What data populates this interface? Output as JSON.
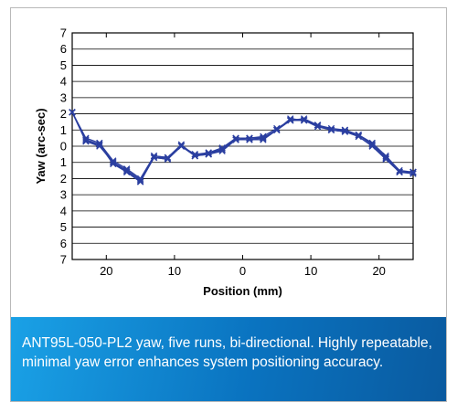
{
  "caption": "ANT95L-050-PL2 yaw, five runs, bi-directional. Highly repeatable, minimal yaw error enhances system positioning accuracy.",
  "chart_data": {
    "type": "line",
    "title": "",
    "xlabel": "Position (mm)",
    "ylabel": "Yaw (arc-sec)",
    "xlim": [
      -25,
      25
    ],
    "ylim": [
      -7,
      7
    ],
    "grid": "horizontal",
    "x_ticks": [
      -20,
      -10,
      0,
      10,
      20
    ],
    "x_tick_labels": [
      "20",
      "10",
      "0",
      "10",
      "20"
    ],
    "y_ticks": [
      7,
      6,
      5,
      4,
      3,
      2,
      1,
      0,
      -1,
      -2,
      -3,
      -4,
      -5,
      -6,
      -7
    ],
    "y_tick_labels": [
      "7",
      "6",
      "5",
      "4",
      "3",
      "2",
      "1",
      "0",
      "1",
      "2",
      "3",
      "4",
      "5",
      "6",
      "7"
    ],
    "color": "#2b3fa0",
    "marker": "x",
    "x": [
      -25,
      -23,
      -21,
      -19,
      -17,
      -15,
      -13,
      -11,
      -9,
      -7,
      -5,
      -3,
      -1,
      1,
      3,
      5,
      7,
      9,
      11,
      13,
      15,
      17,
      19,
      21,
      23,
      25
    ],
    "series": [
      {
        "values": [
          2.1,
          0.4,
          0.1,
          -1.0,
          -1.5,
          -2.1,
          -0.7,
          -0.8,
          0.0,
          -0.6,
          -0.5,
          -0.2,
          0.4,
          0.4,
          0.5,
          1.0,
          1.6,
          1.6,
          1.3,
          1.0,
          0.9,
          0.6,
          0.0,
          -0.8,
          -1.6,
          -1.6
        ]
      },
      {
        "values": [
          2.1,
          0.3,
          0.1,
          -1.1,
          -1.6,
          -2.2,
          -0.6,
          -0.7,
          0.0,
          -0.5,
          -0.4,
          -0.2,
          0.5,
          0.5,
          0.6,
          1.1,
          1.6,
          1.6,
          1.3,
          1.0,
          1.0,
          0.7,
          0.1,
          -0.7,
          -1.6,
          -1.6
        ]
      },
      {
        "values": [
          2.1,
          0.5,
          0.2,
          -0.9,
          -1.4,
          -2.0,
          -0.6,
          -0.7,
          0.1,
          -0.6,
          -0.4,
          -0.1,
          0.5,
          0.5,
          0.5,
          1.0,
          1.7,
          1.6,
          1.3,
          1.1,
          1.0,
          0.7,
          0.2,
          -0.6,
          -1.5,
          -1.6
        ]
      },
      {
        "values": [
          2.1,
          0.4,
          0.1,
          -1.0,
          -1.5,
          -2.1,
          -0.7,
          -0.7,
          0.0,
          -0.5,
          -0.5,
          -0.2,
          0.4,
          0.5,
          0.5,
          1.0,
          1.6,
          1.7,
          1.3,
          1.0,
          0.9,
          0.7,
          0.1,
          -0.7,
          -1.6,
          -1.7
        ]
      },
      {
        "values": [
          2.1,
          0.3,
          0.0,
          -1.0,
          -1.6,
          -2.2,
          -0.7,
          -0.8,
          0.0,
          -0.6,
          -0.5,
          -0.3,
          0.4,
          0.4,
          0.4,
          1.0,
          1.6,
          1.6,
          1.2,
          1.0,
          0.9,
          0.6,
          0.0,
          -0.8,
          -1.6,
          -1.6
        ]
      }
    ]
  }
}
